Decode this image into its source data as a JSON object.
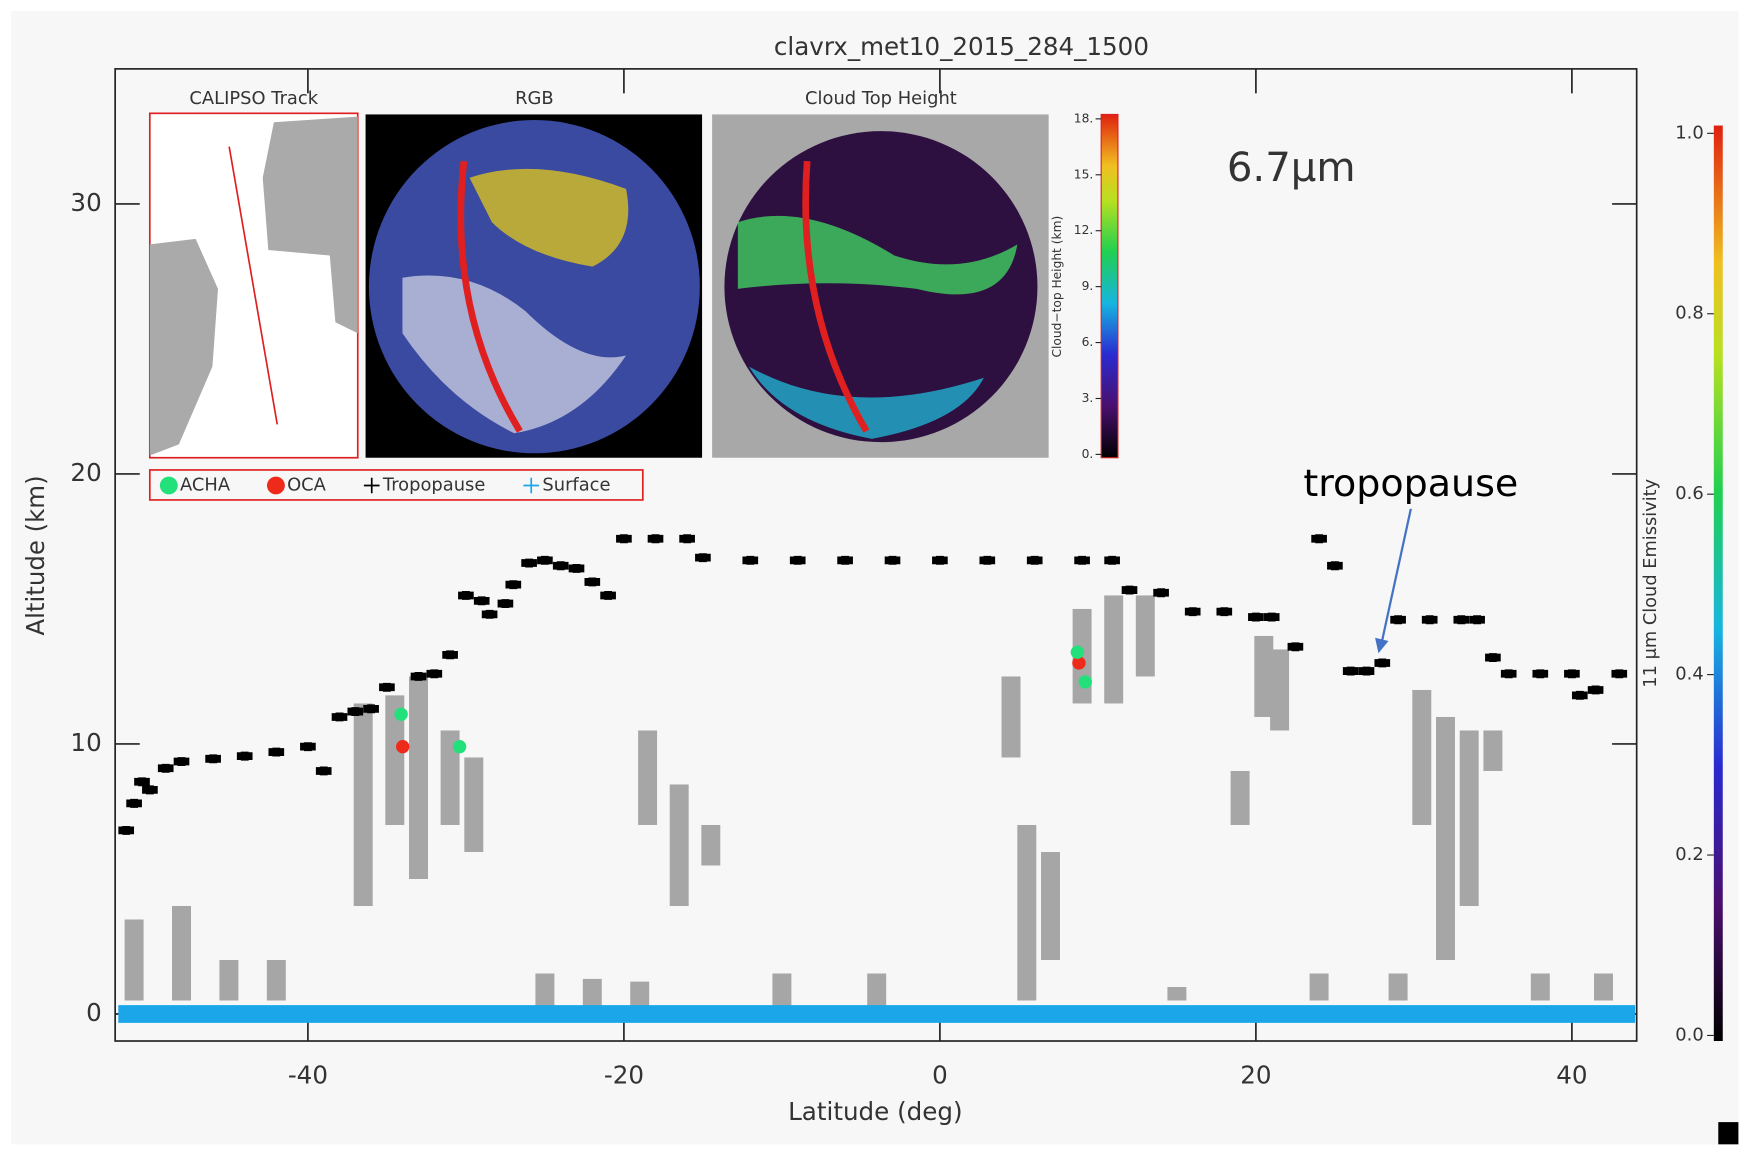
{
  "chart_data": {
    "type": "scatter",
    "title": "clavrx_met10_2015_284_1500",
    "x_label": "Latitude (deg)",
    "y_label": "Altitude (km)",
    "xlim": [
      -52.2,
      44.1
    ],
    "ylim": [
      -1,
      35
    ],
    "xticks": [
      -40,
      -20,
      0,
      20,
      40
    ],
    "yticks": [
      0,
      10,
      20,
      30
    ],
    "y2_label": "11 μm Cloud Emissivity",
    "y2lim": [
      0,
      1
    ],
    "y2ticks": [
      {
        "value": 0,
        "label": "0.0"
      },
      {
        "value": 0.2,
        "label": "0.2"
      },
      {
        "value": 0.4,
        "label": "0.4"
      },
      {
        "value": 0.6,
        "label": "0.6"
      },
      {
        "value": 0.8,
        "label": "0.8"
      },
      {
        "value": 1,
        "label": "1.0"
      }
    ],
    "annotations": [
      "6.7μm",
      "tropopause"
    ],
    "insets": {
      "titles": [
        "CALIPSO Track",
        "RGB",
        "Cloud Top Height"
      ],
      "colorbar_label": "Cloud−top Height (km)",
      "colorbar_lim": [
        0,
        18
      ],
      "colorbar_ticks": [
        {
          "value": 0,
          "label": "0."
        },
        {
          "value": 3,
          "label": "3."
        },
        {
          "value": 6,
          "label": "6."
        },
        {
          "value": 9,
          "label": "9."
        },
        {
          "value": 12,
          "label": "12."
        },
        {
          "value": 15,
          "label": "15."
        },
        {
          "value": 18,
          "label": "18."
        }
      ]
    },
    "cloud_layers": {
      "color": "#a6a6a6",
      "x": [
        -51,
        -48,
        -45,
        -42,
        -36.5,
        -34.5,
        -33,
        -31,
        -29.5,
        -18.5,
        -16.5,
        -14.5,
        -10,
        -4,
        4.5,
        5.5,
        7,
        9,
        11,
        13,
        19,
        20.5,
        21.5,
        30.5,
        32,
        33.5,
        35,
        29,
        38,
        42,
        -25,
        -22,
        -19,
        15,
        24
      ],
      "base": [
        0.5,
        0.5,
        0.5,
        0.5,
        4,
        7,
        5,
        7,
        6,
        7,
        4,
        5.5,
        0.3,
        0.3,
        9.5,
        0.5,
        2,
        11.5,
        11.5,
        12.5,
        7,
        11,
        10.5,
        7,
        2,
        4,
        9,
        0.5,
        0.5,
        0.5,
        0.3,
        0.3,
        0.3,
        0.5,
        0.5
      ],
      "top": [
        3.5,
        4,
        2,
        2,
        11.5,
        11.8,
        12.5,
        10.5,
        9.5,
        10.5,
        8.5,
        7,
        1.5,
        1.5,
        12.5,
        7,
        6,
        15,
        15.5,
        15.5,
        9,
        14,
        13.5,
        12,
        11,
        10.5,
        10.5,
        1.5,
        1.5,
        1.5,
        1.5,
        1.3,
        1.2,
        1,
        1.5
      ]
    },
    "legend": "upper left",
    "series": [
      {
        "name": "ACHA",
        "color": "#22e07a",
        "marker": "circle",
        "x": [
          -34.1,
          -30.4,
          8.7,
          9.2
        ],
        "values": [
          11.1,
          9.9,
          13.4,
          12.3
        ]
      },
      {
        "name": "OCA",
        "color": "#ee2a1a",
        "marker": "circle",
        "x": [
          -34.0,
          8.8
        ],
        "values": [
          9.9,
          13.0
        ]
      },
      {
        "name": "Tropopause",
        "color": "#000000",
        "marker": "plus",
        "x": [
          -51.5,
          -51,
          -50.5,
          -50,
          -49,
          -48,
          -46,
          -44,
          -42,
          -40,
          -39,
          -38,
          -37,
          -36,
          -35,
          -33,
          -32,
          -31,
          -30,
          -29,
          -28.5,
          -27.5,
          -27,
          -26,
          -25,
          -24,
          -23,
          -22,
          -21,
          -20,
          -18,
          -16,
          -15,
          -12,
          -9,
          -6,
          -3,
          0,
          3,
          6,
          9,
          10.9,
          12,
          14,
          16,
          18,
          20,
          21,
          22.5,
          24,
          25,
          26,
          27,
          28,
          29,
          31,
          33,
          34,
          35,
          36,
          38,
          40,
          40.5,
          41.5,
          43
        ],
        "values": [
          6.8,
          7.8,
          8.6,
          8.3,
          9.1,
          9.35,
          9.45,
          9.55,
          9.7,
          9.9,
          9.0,
          11.0,
          11.2,
          11.3,
          12.1,
          12.5,
          12.6,
          13.3,
          15.5,
          15.3,
          14.8,
          15.2,
          15.9,
          16.7,
          16.8,
          16.6,
          16.5,
          16.0,
          15.5,
          17.6,
          17.6,
          17.6,
          16.9,
          16.8,
          16.8,
          16.8,
          16.8,
          16.8,
          16.8,
          16.8,
          16.8,
          16.8,
          15.7,
          15.6,
          14.9,
          14.9,
          14.7,
          14.7,
          13.6,
          17.6,
          16.6,
          12.7,
          12.7,
          13.0,
          14.6,
          14.6,
          14.6,
          14.6,
          13.2,
          12.6,
          12.6,
          12.6,
          11.8,
          12.0,
          12.6
        ]
      },
      {
        "name": "Surface",
        "color": "#1aa6e8",
        "marker": "band",
        "x": [
          -52,
          -44,
          -36,
          -28,
          -20,
          -12,
          -4,
          4,
          12,
          20,
          28,
          36,
          44
        ],
        "values": [
          0,
          0,
          0,
          0,
          0,
          0,
          0,
          0,
          0,
          0,
          0,
          0,
          0
        ]
      }
    ]
  }
}
